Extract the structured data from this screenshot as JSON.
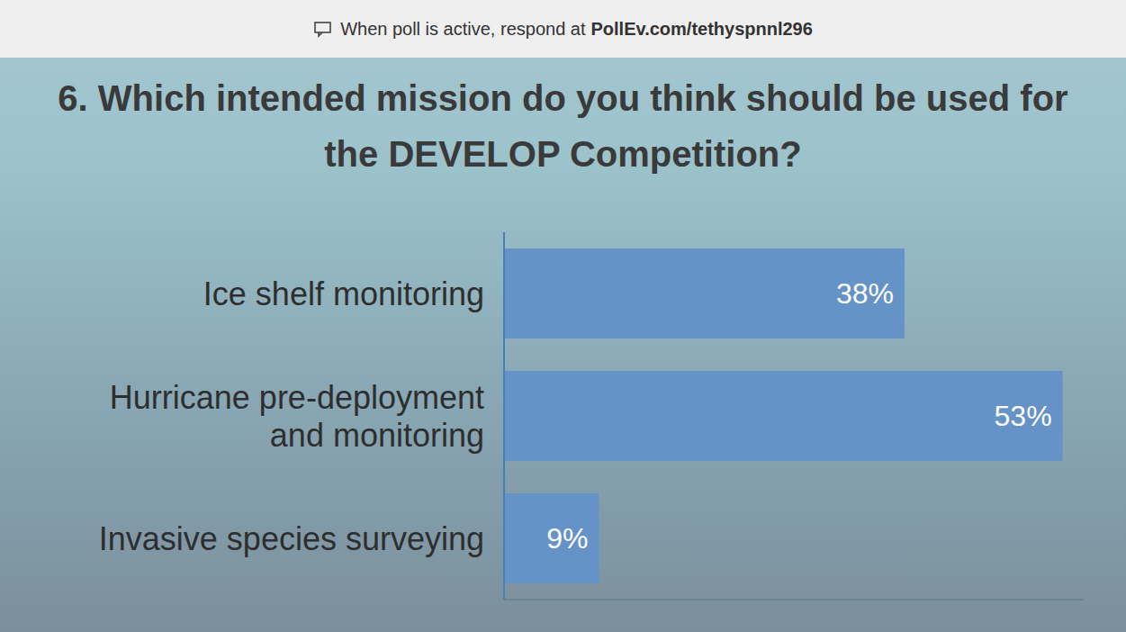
{
  "header": {
    "text": "When poll is active, respond at",
    "link": "PollEv.com/tethyspnnl296"
  },
  "chart_data": {
    "type": "bar",
    "title": "6. Which intended mission do you think should be used for the DEVELOP Competition?",
    "orientation": "horizontal",
    "categories": [
      "Ice shelf monitoring",
      "Hurricane pre-deployment and monitoring",
      "Invasive species surveying"
    ],
    "values": [
      38,
      53,
      9
    ],
    "value_labels": [
      "38%",
      "53%",
      "9%"
    ],
    "data_labels": true,
    "color": "#6593c8",
    "xlim": [
      0,
      55
    ],
    "tick_labels": "y",
    "grid": false
  }
}
